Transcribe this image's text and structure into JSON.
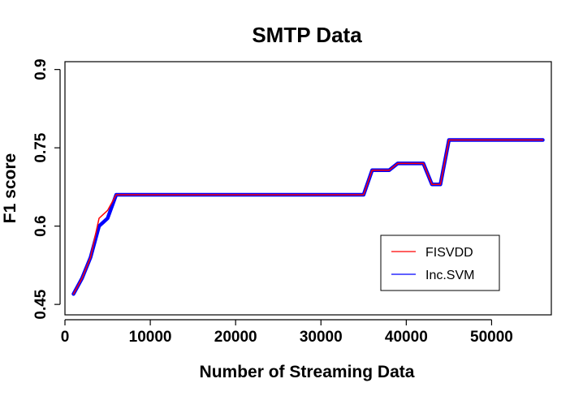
{
  "chart_data": {
    "type": "line",
    "title": "SMTP Data",
    "xlabel": "Number of Streaming Data",
    "ylabel": "F1 score",
    "xlim": [
      0,
      57000
    ],
    "ylim": [
      0.43,
      0.915
    ],
    "xticks": [
      0,
      10000,
      20000,
      30000,
      40000,
      50000
    ],
    "yticks": [
      0.45,
      0.6,
      0.75,
      0.9
    ],
    "ytick_labels": [
      "0.45",
      "0.6",
      "0.75",
      "0.9"
    ],
    "legend_position": "bottom-right",
    "series": [
      {
        "name": "FISVDD",
        "color": "#ff0000",
        "x": [
          1000,
          2000,
          3000,
          4000,
          5000,
          6000,
          35000,
          36000,
          38000,
          39000,
          42000,
          43000,
          44000,
          45000,
          56000
        ],
        "y": [
          0.47,
          0.5,
          0.54,
          0.615,
          0.63,
          0.66,
          0.66,
          0.707,
          0.707,
          0.72,
          0.72,
          0.68,
          0.68,
          0.765,
          0.765
        ]
      },
      {
        "name": "Inc.SVM",
        "color": "#0000ff",
        "x": [
          1000,
          2000,
          3000,
          4000,
          5000,
          6000,
          35000,
          36000,
          38000,
          39000,
          42000,
          43000,
          44000,
          45000,
          56000
        ],
        "y": [
          0.47,
          0.5,
          0.54,
          0.6,
          0.615,
          0.66,
          0.66,
          0.707,
          0.707,
          0.72,
          0.72,
          0.68,
          0.68,
          0.765,
          0.765
        ]
      }
    ]
  }
}
